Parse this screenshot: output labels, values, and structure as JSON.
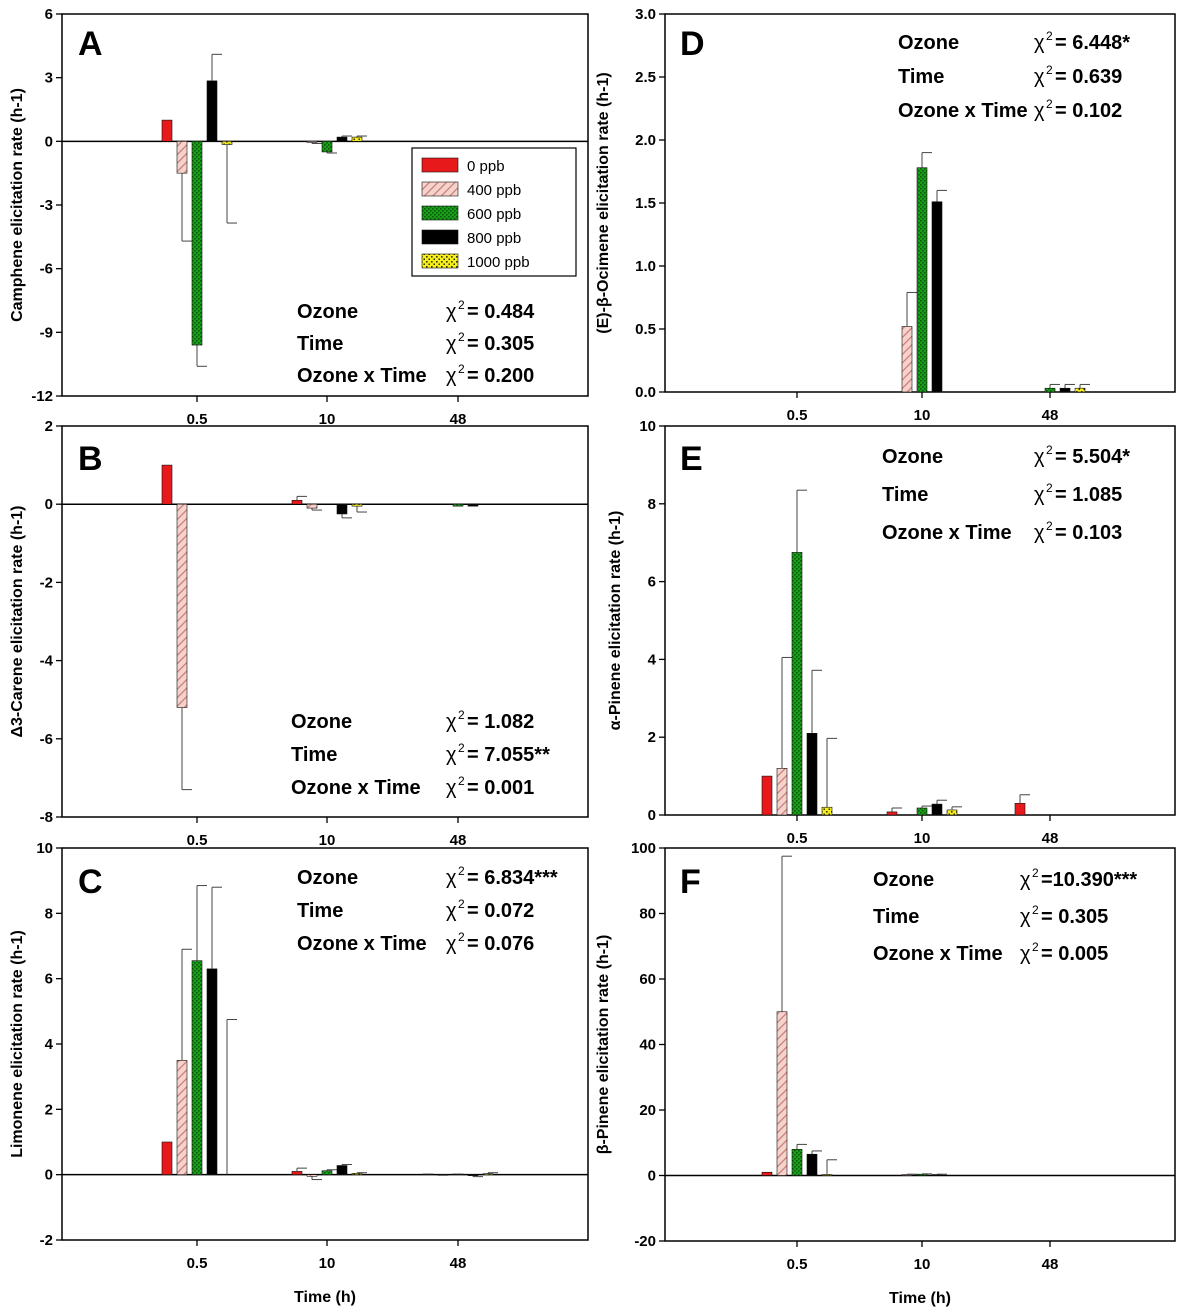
{
  "colors": {
    "c0": "#e8191b",
    "c400_fill": "#f6d2cc",
    "c400_hatch": "#c87a72",
    "c600": "#18a118",
    "c600_dot": "#0b5a0b",
    "c800": "#000000",
    "c1000": "#f7ef1c",
    "c1000_dot": "#333300"
  },
  "legend": {
    "entries": [
      "0 ppb",
      "400 ppb",
      "600 ppb",
      "800 ppb",
      "1000 ppb"
    ]
  },
  "chart_data": [
    {
      "panel": "A",
      "type": "bar",
      "ylabel": "Camphene elicitation rate (h-1)",
      "xlabel": "",
      "categories": [
        "0.5",
        "10",
        "48"
      ],
      "ylim": [
        -12,
        6
      ],
      "yticks": [
        6,
        3,
        0,
        -3,
        -6,
        -9,
        -12
      ],
      "series": [
        {
          "name": "0 ppb",
          "values": [
            1.0,
            0.0,
            0.0
          ],
          "errors": [
            0,
            0,
            0
          ]
        },
        {
          "name": "400 ppb",
          "values": [
            -1.5,
            -0.05,
            0.0
          ],
          "errors": [
            3.2,
            0.05,
            0
          ]
        },
        {
          "name": "600 ppb",
          "values": [
            -9.6,
            -0.5,
            0.0
          ],
          "errors": [
            1.0,
            0.05,
            0
          ]
        },
        {
          "name": "800 ppb",
          "values": [
            2.85,
            0.2,
            0.0
          ],
          "errors": [
            1.25,
            0.05,
            0
          ]
        },
        {
          "name": "1000 ppb",
          "values": [
            -0.15,
            0.2,
            0.0
          ],
          "errors": [
            3.7,
            0.05,
            0
          ]
        }
      ],
      "stats": [
        {
          "label": "Ozone",
          "chi": "χ",
          "value": "= 0.484"
        },
        {
          "label": "Time",
          "chi": "χ",
          "value": "= 0.305"
        },
        {
          "label": "Ozone x Time",
          "chi": "χ",
          "value": "= 0.200"
        }
      ]
    },
    {
      "panel": "B",
      "type": "bar",
      "ylabel": "Δ3-Carene elicitation rate (h-1)",
      "xlabel": "",
      "categories": [
        "0.5",
        "10",
        "48"
      ],
      "ylim": [
        -8,
        2
      ],
      "yticks": [
        2,
        0,
        -2,
        -4,
        -6,
        -8
      ],
      "series": [
        {
          "name": "0 ppb",
          "values": [
            1.0,
            0.1,
            0.0
          ],
          "errors": [
            0,
            0.1,
            0
          ]
        },
        {
          "name": "400 ppb",
          "values": [
            -5.2,
            -0.1,
            0.0
          ],
          "errors": [
            2.1,
            0.05,
            0
          ]
        },
        {
          "name": "600 ppb",
          "values": [
            0.0,
            0.0,
            -0.05
          ],
          "errors": [
            0,
            0,
            0
          ]
        },
        {
          "name": "800 ppb",
          "values": [
            0.0,
            -0.25,
            -0.05
          ],
          "errors": [
            0,
            0.1,
            0
          ]
        },
        {
          "name": "1000 ppb",
          "values": [
            0.0,
            -0.05,
            0.0
          ],
          "errors": [
            0,
            0.15,
            0
          ]
        }
      ],
      "stats": [
        {
          "label": "Ozone",
          "chi": "χ",
          "value": "= 1.082"
        },
        {
          "label": "Time",
          "chi": "χ",
          "value": "= 7.055**"
        },
        {
          "label": "Ozone x Time",
          "chi": "χ",
          "value": "=  0.001"
        }
      ]
    },
    {
      "panel": "C",
      "type": "bar",
      "ylabel": "Limonene elicitation rate (h-1)",
      "xlabel": "Time (h)",
      "categories": [
        "0.5",
        "10",
        "48"
      ],
      "ylim": [
        -2,
        10
      ],
      "yticks": [
        10,
        8,
        6,
        4,
        2,
        0,
        -2
      ],
      "series": [
        {
          "name": "0 ppb",
          "values": [
            1.0,
            0.1,
            0.02
          ],
          "errors": [
            0,
            0.1,
            0
          ]
        },
        {
          "name": "400 ppb",
          "values": [
            3.5,
            -0.05,
            -0.02
          ],
          "errors": [
            3.4,
            0.1,
            0
          ]
        },
        {
          "name": "600 ppb",
          "values": [
            6.55,
            0.12,
            0.02
          ],
          "errors": [
            2.3,
            0.03,
            0
          ]
        },
        {
          "name": "800 ppb",
          "values": [
            6.3,
            0.28,
            -0.03
          ],
          "errors": [
            2.5,
            0.03,
            0.03
          ]
        },
        {
          "name": "1000 ppb",
          "values": [
            0.0,
            0.04,
            0.03
          ],
          "errors": [
            4.75,
            0.02,
            0.03
          ]
        }
      ],
      "stats": [
        {
          "label": "Ozone",
          "chi": "χ",
          "value": "= 6.834***"
        },
        {
          "label": "Time",
          "chi": "χ",
          "value": "= 0.072"
        },
        {
          "label": "Ozone x Time",
          "chi": "χ",
          "value": "= 0.076"
        }
      ]
    },
    {
      "panel": "D",
      "type": "bar",
      "ylabel": "(E)-β-Ocimene elicitation rate (h-1)",
      "xlabel": "",
      "categories": [
        "0.5",
        "10",
        "48"
      ],
      "ylim": [
        0,
        3.0
      ],
      "yticks": [
        "3.0",
        "2.5",
        "2.0",
        "1.5",
        "1.0",
        "0.5",
        "0.0"
      ],
      "series": [
        {
          "name": "0 ppb",
          "values": [
            0,
            0,
            0
          ],
          "errors": [
            0,
            0,
            0
          ]
        },
        {
          "name": "400 ppb",
          "values": [
            0,
            0.52,
            0
          ],
          "errors": [
            0,
            0.27,
            0
          ]
        },
        {
          "name": "600 ppb",
          "values": [
            0,
            1.78,
            0.03
          ],
          "errors": [
            0,
            0.12,
            0.03
          ]
        },
        {
          "name": "800 ppb",
          "values": [
            0,
            1.51,
            0.03
          ],
          "errors": [
            0,
            0.09,
            0.03
          ]
        },
        {
          "name": "1000 ppb",
          "values": [
            0,
            0,
            0.03
          ],
          "errors": [
            0,
            0,
            0.03
          ]
        }
      ],
      "stats": [
        {
          "label": "Ozone",
          "chi": "χ",
          "value": "= 6.448*"
        },
        {
          "label": "Time",
          "chi": "χ",
          "value": "= 0.639"
        },
        {
          "label": "Ozone x Time",
          "chi": "χ",
          "value": "= 0.102"
        }
      ]
    },
    {
      "panel": "E",
      "type": "bar",
      "ylabel": "α-Pinene elicitation rate (h-1)",
      "xlabel": "",
      "categories": [
        "0.5",
        "10",
        "48"
      ],
      "ylim": [
        0,
        10
      ],
      "yticks": [
        10,
        8,
        6,
        4,
        2,
        0
      ],
      "series": [
        {
          "name": "0 ppb",
          "values": [
            1.0,
            0.08,
            0.3
          ],
          "errors": [
            0,
            0.1,
            0.22
          ]
        },
        {
          "name": "400 ppb",
          "values": [
            1.2,
            0,
            0
          ],
          "errors": [
            2.85,
            0,
            0
          ]
        },
        {
          "name": "600 ppb",
          "values": [
            6.75,
            0.18,
            0
          ],
          "errors": [
            1.6,
            0.05,
            0
          ]
        },
        {
          "name": "800 ppb",
          "values": [
            2.1,
            0.28,
            0
          ],
          "errors": [
            1.62,
            0.1,
            0
          ]
        },
        {
          "name": "1000 ppb",
          "values": [
            0.2,
            0.13,
            0
          ],
          "errors": [
            1.77,
            0.08,
            0
          ]
        }
      ],
      "stats": [
        {
          "label": "Ozone",
          "chi": "χ",
          "value": "= 5.504*"
        },
        {
          "label": "Time",
          "chi": "χ",
          "value": "= 1.085"
        },
        {
          "label": "Ozone x Time",
          "chi": "χ",
          "value": "= 0.103"
        }
      ]
    },
    {
      "panel": "F",
      "type": "bar",
      "ylabel": "β-Pinene elicitation rate (h-1)",
      "xlabel": "Time (h)",
      "categories": [
        "0.5",
        "10",
        "48"
      ],
      "ylim": [
        -20,
        100
      ],
      "yticks": [
        100,
        80,
        60,
        40,
        20,
        0,
        -20
      ],
      "series": [
        {
          "name": "0 ppb",
          "values": [
            1.0,
            0,
            0
          ],
          "errors": [
            0,
            0,
            0
          ]
        },
        {
          "name": "400 ppb",
          "values": [
            50,
            0.3,
            0
          ],
          "errors": [
            47.5,
            0.1,
            0
          ]
        },
        {
          "name": "600 ppb",
          "values": [
            8.0,
            0.4,
            0
          ],
          "errors": [
            1.5,
            0.1,
            0
          ]
        },
        {
          "name": "800 ppb",
          "values": [
            6.5,
            0.3,
            0
          ],
          "errors": [
            1.0,
            0.1,
            0
          ]
        },
        {
          "name": "1000 ppb",
          "values": [
            0.3,
            0,
            0
          ],
          "errors": [
            4.5,
            0,
            0
          ]
        }
      ],
      "stats": [
        {
          "label": "Ozone",
          "chi": "χ",
          "value": "=10.390***"
        },
        {
          "label": "Time",
          "chi": "χ",
          "value": "=  0.305"
        },
        {
          "label": "Ozone x Time",
          "chi": "χ",
          "value": "=  0.005"
        }
      ]
    }
  ]
}
